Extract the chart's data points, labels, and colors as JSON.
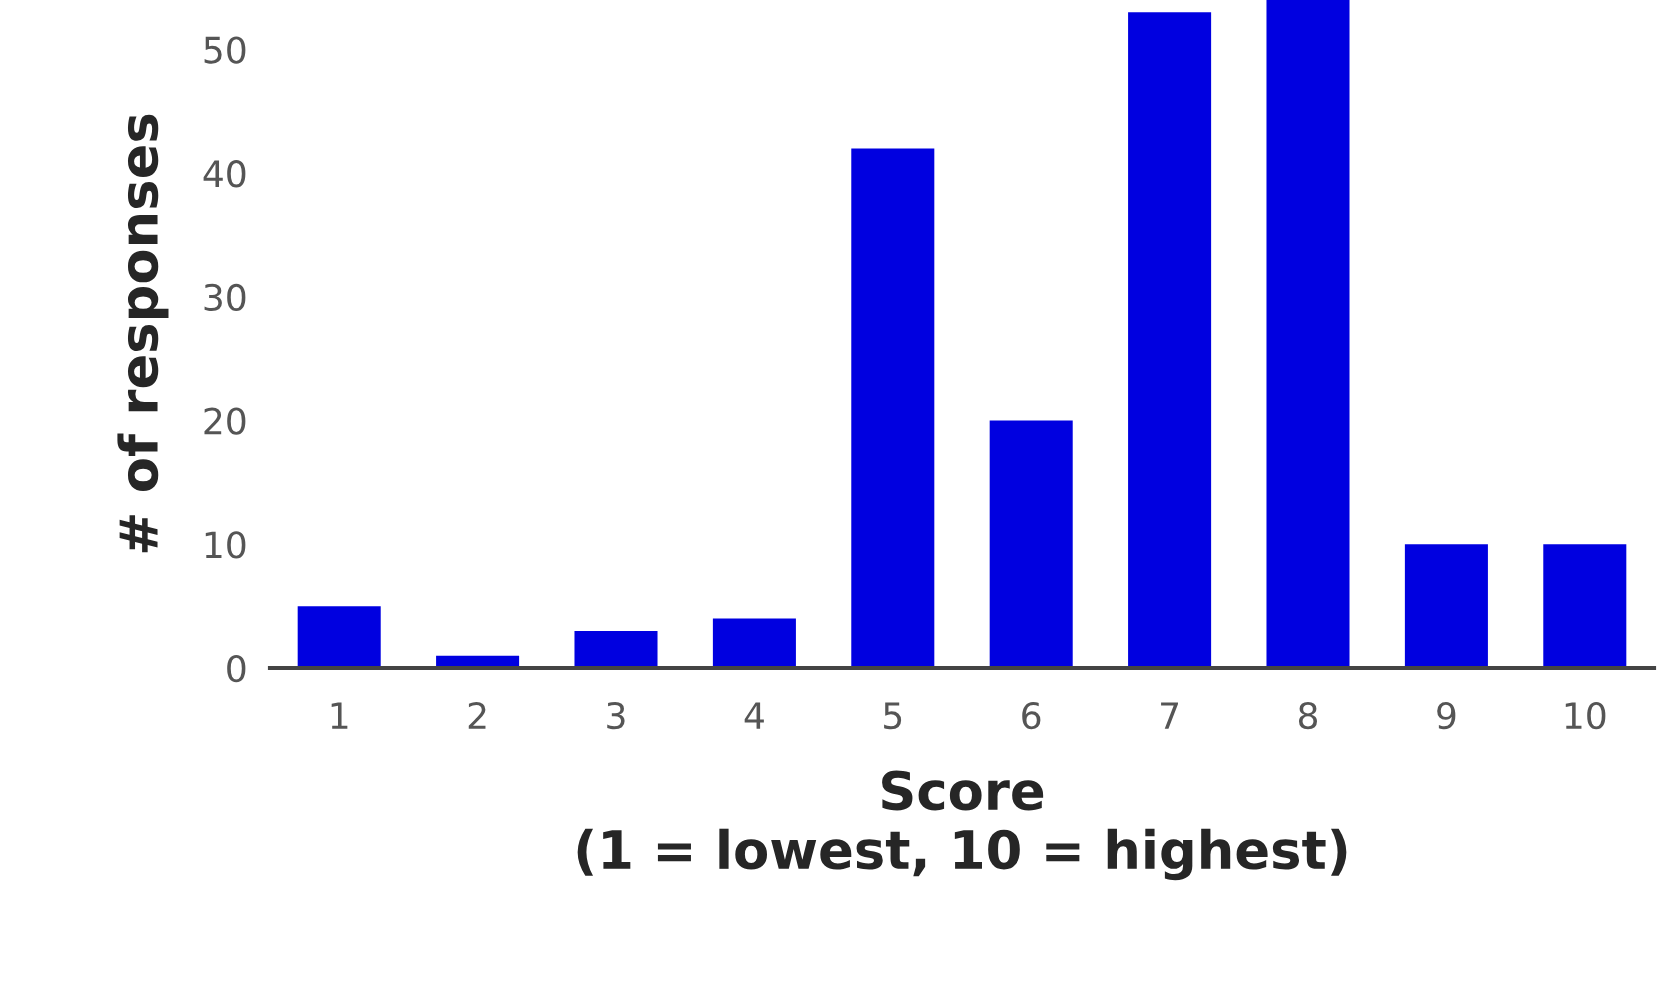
{
  "chart_data": {
    "type": "bar",
    "xlabel": "Score\n(1 = lowest, 10 = highest)",
    "ylabel": "# of responses",
    "categories": [
      "1",
      "2",
      "3",
      "4",
      "5",
      "6",
      "7",
      "8",
      "9",
      "10"
    ],
    "values": [
      5,
      1,
      3,
      4,
      42,
      20,
      53,
      54,
      10,
      10
    ],
    "color": "#0000e0",
    "ylim": [
      0,
      54
    ],
    "yticks": [
      0,
      10,
      20,
      30,
      40,
      50
    ],
    "grid": false
  }
}
